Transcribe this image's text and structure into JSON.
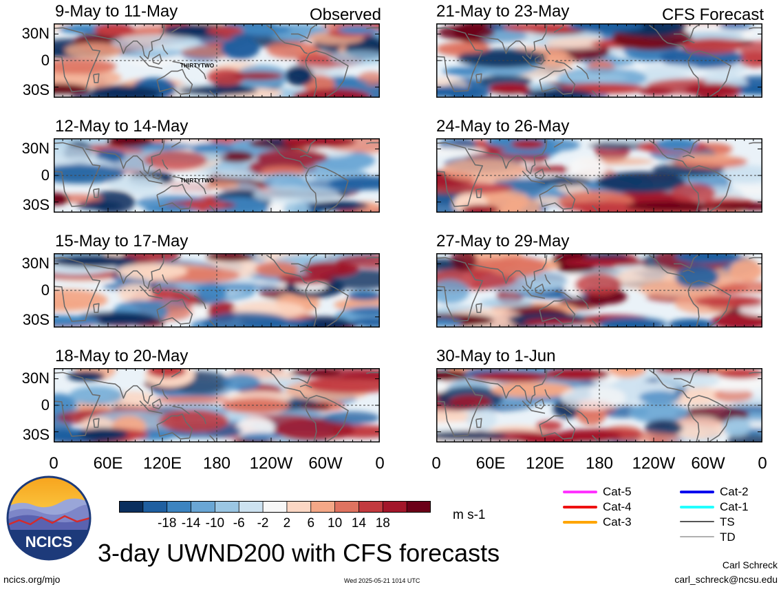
{
  "panels": [
    {
      "title": "9-May to 11-May",
      "tag": "Observed",
      "storm": "THIRTYTWO",
      "seed": 11
    },
    {
      "title": "12-May to 14-May",
      "tag": "",
      "storm": "THIRTYTWO",
      "seed": 23
    },
    {
      "title": "15-May to 17-May",
      "tag": "",
      "storm": "",
      "seed": 37
    },
    {
      "title": "18-May to 20-May",
      "tag": "",
      "storm": "",
      "seed": 41
    },
    {
      "title": "21-May to 23-May",
      "tag": "CFS Forecast",
      "storm": "",
      "seed": 53
    },
    {
      "title": "24-May to 26-May",
      "tag": "",
      "storm": "",
      "seed": 67
    },
    {
      "title": "27-May to 29-May",
      "tag": "",
      "storm": "",
      "seed": 79
    },
    {
      "title": "30-May to 1-Jun",
      "tag": "",
      "storm": "",
      "seed": 83
    }
  ],
  "lat_labels": [
    "30N",
    "0",
    "30S"
  ],
  "lon_labels": [
    "0",
    "60E",
    "120E",
    "180",
    "120W",
    "60W",
    "0"
  ],
  "colorbar": {
    "colors": [
      "#0a2f5e",
      "#1f5fa0",
      "#3d84c0",
      "#6aa6d4",
      "#9bc6e3",
      "#cde2f0",
      "#f7f7f7",
      "#fbd7c4",
      "#f4a887",
      "#df7360",
      "#c23a3f",
      "#a3162a",
      "#6b0018"
    ],
    "labels": [
      "-18",
      "-14",
      "-10",
      "-6",
      "-2",
      "2",
      "6",
      "10",
      "14",
      "18"
    ],
    "units": "m s-1"
  },
  "legend": [
    {
      "label": "Cat-5",
      "color": "#ff33ff"
    },
    {
      "label": "Cat-4",
      "color": "#ee1111"
    },
    {
      "label": "Cat-3",
      "color": "#ffa500"
    },
    {
      "label": "Cat-2",
      "color": "#0000ee"
    },
    {
      "label": "Cat-1",
      "color": "#22ffff"
    },
    {
      "label": "TS",
      "color": "#555555"
    },
    {
      "label": "TD",
      "color": "#b0b0b0"
    }
  ],
  "logo_text": "NCICS",
  "main_title": "3-day UWND200 with CFS forecasts",
  "footer": {
    "left": "ncics.org/mjo",
    "timestamp": "Wed 2025-05-21 1014 UTC",
    "author": "Carl Schreck",
    "email": "carl_schreck@ncsu.edu"
  },
  "colors": {
    "coast": "#6b6b6b",
    "zero_line": "#444444"
  }
}
